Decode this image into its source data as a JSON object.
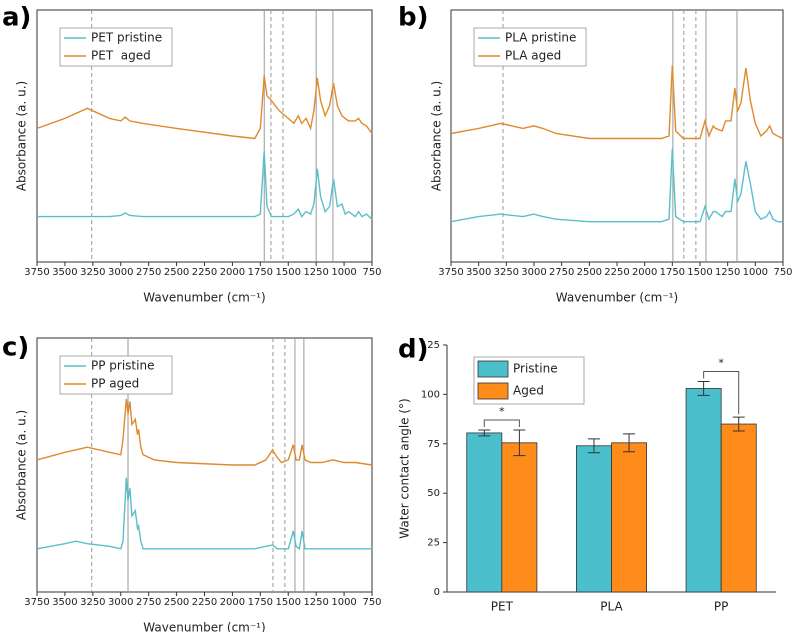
{
  "chart_data": [
    {
      "type": "line",
      "panel_label": "a)",
      "x_label": "Wavenumber (cm⁻¹)",
      "y_label": "Absorbance (a. u.)",
      "xlim": [
        3750,
        750
      ],
      "xticks": [
        3750,
        3500,
        3250,
        3000,
        2750,
        2500,
        2250,
        2000,
        1750,
        1500,
        1250,
        1000,
        750
      ],
      "ylim": [
        0,
        1
      ],
      "legend": "upper left",
      "vlines_solid": [
        1715,
        1250,
        1100
      ],
      "vlines_dashed": [
        3260,
        1655,
        1547
      ],
      "x": [
        3750,
        3500,
        3300,
        3100,
        3000,
        2960,
        2920,
        2800,
        2500,
        2000,
        1800,
        1750,
        1715,
        1690,
        1650,
        1580,
        1500,
        1450,
        1410,
        1380,
        1340,
        1300,
        1270,
        1240,
        1210,
        1170,
        1130,
        1095,
        1060,
        1020,
        990,
        960,
        900,
        870,
        840,
        800,
        750
      ],
      "series": [
        {
          "name": "PET pristine",
          "color": "#5bbfca",
          "values": [
            0.18,
            0.18,
            0.18,
            0.18,
            0.185,
            0.195,
            0.185,
            0.18,
            0.18,
            0.18,
            0.18,
            0.19,
            0.44,
            0.22,
            0.18,
            0.18,
            0.18,
            0.19,
            0.21,
            0.18,
            0.2,
            0.19,
            0.23,
            0.37,
            0.26,
            0.2,
            0.22,
            0.33,
            0.22,
            0.23,
            0.19,
            0.2,
            0.18,
            0.2,
            0.18,
            0.19,
            0.17
          ]
        },
        {
          "name": "PET  aged",
          "color": "#e08a2c",
          "values": [
            0.53,
            0.57,
            0.61,
            0.57,
            0.56,
            0.575,
            0.56,
            0.55,
            0.53,
            0.5,
            0.49,
            0.53,
            0.74,
            0.66,
            0.64,
            0.6,
            0.57,
            0.55,
            0.58,
            0.55,
            0.57,
            0.53,
            0.6,
            0.73,
            0.64,
            0.58,
            0.62,
            0.71,
            0.62,
            0.58,
            0.57,
            0.56,
            0.56,
            0.57,
            0.55,
            0.54,
            0.51
          ]
        }
      ]
    },
    {
      "type": "line",
      "panel_label": "b)",
      "x_label": "Wavenumber (cm⁻¹)",
      "y_label": "Absorbance (a. u.)",
      "xlim": [
        3750,
        750
      ],
      "xticks": [
        3750,
        3500,
        3250,
        3000,
        2750,
        2500,
        2250,
        2000,
        1750,
        1500,
        1250,
        1000,
        750
      ],
      "ylim": [
        0,
        1
      ],
      "legend": "upper left",
      "vlines_solid": [
        1745,
        1446,
        1166
      ],
      "vlines_dashed": [
        3280,
        1646,
        1537
      ],
      "x": [
        3750,
        3500,
        3300,
        3100,
        3000,
        2960,
        2920,
        2800,
        2500,
        2000,
        1850,
        1780,
        1750,
        1720,
        1650,
        1500,
        1455,
        1420,
        1380,
        1360,
        1300,
        1270,
        1220,
        1185,
        1160,
        1130,
        1085,
        1045,
        1000,
        950,
        900,
        870,
        840,
        800,
        750
      ],
      "series": [
        {
          "name": "PLA pristine",
          "color": "#5bbfca",
          "values": [
            0.16,
            0.18,
            0.19,
            0.18,
            0.19,
            0.185,
            0.18,
            0.17,
            0.16,
            0.16,
            0.16,
            0.17,
            0.45,
            0.18,
            0.16,
            0.16,
            0.22,
            0.17,
            0.2,
            0.2,
            0.18,
            0.2,
            0.2,
            0.33,
            0.24,
            0.27,
            0.4,
            0.31,
            0.2,
            0.17,
            0.18,
            0.2,
            0.17,
            0.16,
            0.16
          ]
        },
        {
          "name": "PLA aged",
          "color": "#e08a2c",
          "values": [
            0.51,
            0.53,
            0.55,
            0.53,
            0.54,
            0.535,
            0.53,
            0.51,
            0.49,
            0.49,
            0.49,
            0.5,
            0.78,
            0.52,
            0.49,
            0.49,
            0.56,
            0.5,
            0.54,
            0.53,
            0.52,
            0.56,
            0.56,
            0.69,
            0.6,
            0.63,
            0.77,
            0.64,
            0.55,
            0.5,
            0.52,
            0.54,
            0.51,
            0.5,
            0.49
          ]
        }
      ]
    },
    {
      "type": "line",
      "panel_label": "c)",
      "x_label": "Wavenumber (cm⁻¹)",
      "y_label": "Absorbance (a. u.)",
      "xlim": [
        3750,
        750
      ],
      "xticks": [
        3750,
        3500,
        3250,
        3000,
        2750,
        2500,
        2250,
        2000,
        1750,
        1500,
        1250,
        1000,
        750
      ],
      "ylim": [
        0,
        1
      ],
      "legend": "upper left",
      "vlines_solid": [
        2935,
        1440,
        1360
      ],
      "vlines_dashed": [
        3260,
        1637,
        1530
      ],
      "x": [
        3750,
        3500,
        3400,
        3300,
        3100,
        3000,
        2980,
        2950,
        2935,
        2918,
        2900,
        2870,
        2850,
        2840,
        2820,
        2800,
        2700,
        2500,
        2000,
        1800,
        1700,
        1640,
        1600,
        1560,
        1500,
        1455,
        1430,
        1400,
        1376,
        1350,
        1300,
        1200,
        1100,
        1000,
        900,
        750
      ],
      "series": [
        {
          "name": "PP pristine",
          "color": "#5bbfca",
          "values": [
            0.17,
            0.19,
            0.2,
            0.19,
            0.18,
            0.17,
            0.2,
            0.45,
            0.36,
            0.41,
            0.3,
            0.32,
            0.25,
            0.26,
            0.2,
            0.17,
            0.17,
            0.17,
            0.17,
            0.17,
            0.18,
            0.185,
            0.17,
            0.17,
            0.17,
            0.24,
            0.18,
            0.17,
            0.24,
            0.17,
            0.17,
            0.17,
            0.17,
            0.17,
            0.17,
            0.17
          ]
        },
        {
          "name": "PP aged",
          "color": "#e08a2c",
          "values": [
            0.52,
            0.55,
            0.56,
            0.57,
            0.55,
            0.54,
            0.6,
            0.76,
            0.7,
            0.75,
            0.66,
            0.68,
            0.62,
            0.64,
            0.57,
            0.54,
            0.52,
            0.51,
            0.5,
            0.5,
            0.52,
            0.56,
            0.53,
            0.51,
            0.52,
            0.58,
            0.52,
            0.52,
            0.58,
            0.52,
            0.51,
            0.51,
            0.52,
            0.51,
            0.51,
            0.5
          ]
        }
      ]
    },
    {
      "type": "bar",
      "panel_label": "d)",
      "y_label": "Water contact angle (°)",
      "categories": [
        "PET",
        "PLA",
        "PP"
      ],
      "ylim": [
        0,
        125
      ],
      "yticks": [
        0,
        25,
        50,
        75,
        100,
        125
      ],
      "legend": "upper left",
      "series": [
        {
          "name": "Pristine",
          "color": "#4bbfcc",
          "values": [
            80.5,
            74,
            103
          ],
          "errors": [
            1.5,
            3.5,
            3.5
          ]
        },
        {
          "name": "Aged",
          "color": "#ff8c1a",
          "values": [
            75.5,
            75.5,
            85
          ],
          "errors": [
            6.5,
            4.5,
            3.5
          ]
        }
      ],
      "significance": [
        {
          "category": 0,
          "label": "*"
        },
        {
          "category": 2,
          "label": "*"
        }
      ]
    }
  ]
}
